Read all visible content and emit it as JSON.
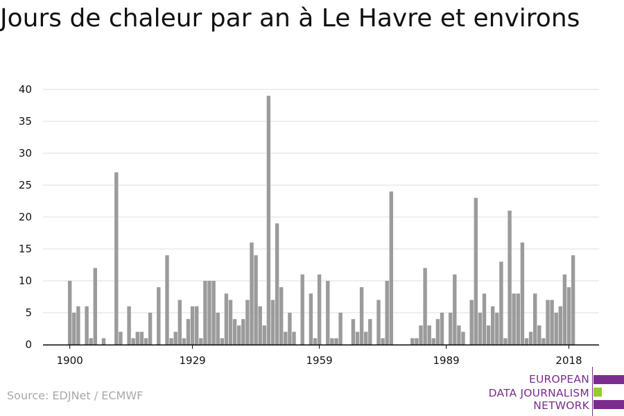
{
  "title": "Jours de chaleur par an à Le Havre et environs",
  "source": "Source: EDJNet / ECMWF",
  "logo": {
    "lines": [
      "EUROPEAN",
      "DATA JOURNALISM",
      "NETWORK"
    ],
    "colors": [
      "#7b2d8e",
      "#96cc2e",
      "#7b2d8e"
    ]
  },
  "colors": {
    "bar": "#9b9b9b",
    "grid": "#dddddd",
    "axis": "#000000",
    "text": "#111111",
    "logo_purple": "#7b2d8e",
    "logo_green": "#96cc2e"
  },
  "chart_data": {
    "type": "bar",
    "title": "Jours de chaleur par an à Le Havre et environs",
    "xlabel": "",
    "ylabel": "",
    "ylim": [
      0,
      40
    ],
    "yticks": [
      0,
      5,
      10,
      15,
      20,
      25,
      30,
      35,
      40
    ],
    "xticks": [
      1900,
      1929,
      1959,
      1989,
      2018
    ],
    "grid": true,
    "x": [
      1900,
      1901,
      1902,
      1903,
      1904,
      1905,
      1906,
      1907,
      1908,
      1909,
      1910,
      1911,
      1912,
      1913,
      1914,
      1915,
      1916,
      1917,
      1918,
      1919,
      1920,
      1921,
      1922,
      1923,
      1924,
      1925,
      1926,
      1927,
      1928,
      1929,
      1930,
      1931,
      1932,
      1933,
      1934,
      1935,
      1936,
      1937,
      1938,
      1939,
      1940,
      1941,
      1942,
      1943,
      1944,
      1945,
      1946,
      1947,
      1948,
      1949,
      1950,
      1951,
      1952,
      1953,
      1954,
      1955,
      1956,
      1957,
      1958,
      1959,
      1960,
      1961,
      1962,
      1963,
      1964,
      1965,
      1966,
      1967,
      1968,
      1969,
      1970,
      1971,
      1972,
      1973,
      1974,
      1975,
      1976,
      1977,
      1978,
      1979,
      1980,
      1981,
      1982,
      1983,
      1984,
      1985,
      1986,
      1987,
      1988,
      1989,
      1990,
      1991,
      1992,
      1993,
      1994,
      1995,
      1996,
      1997,
      1998,
      1999,
      2000,
      2001,
      2002,
      2003,
      2004,
      2005,
      2006,
      2007,
      2008,
      2009,
      2010,
      2011,
      2012,
      2013,
      2014,
      2015,
      2016,
      2017,
      2018,
      2019
    ],
    "values": [
      10,
      5,
      6,
      0,
      6,
      1,
      12,
      0,
      1,
      0,
      0,
      27,
      2,
      0,
      6,
      1,
      2,
      2,
      1,
      5,
      0,
      9,
      0,
      14,
      1,
      2,
      7,
      1,
      4,
      6,
      6,
      1,
      10,
      10,
      10,
      5,
      1,
      8,
      7,
      4,
      3,
      4,
      7,
      16,
      14,
      6,
      3,
      39,
      7,
      19,
      9,
      2,
      5,
      2,
      0,
      11,
      0,
      8,
      1,
      11,
      0,
      10,
      1,
      1,
      5,
      0,
      0,
      4,
      2,
      9,
      2,
      4,
      0,
      7,
      1,
      10,
      24,
      0,
      0,
      0,
      0,
      1,
      1,
      3,
      12,
      3,
      1,
      4,
      5,
      0,
      5,
      11,
      3,
      2,
      0,
      7,
      23,
      5,
      8,
      3,
      6,
      5,
      13,
      1,
      21,
      8,
      8,
      16,
      1,
      2,
      8,
      3,
      1,
      7,
      7,
      5,
      6,
      11,
      9,
      14
    ]
  }
}
